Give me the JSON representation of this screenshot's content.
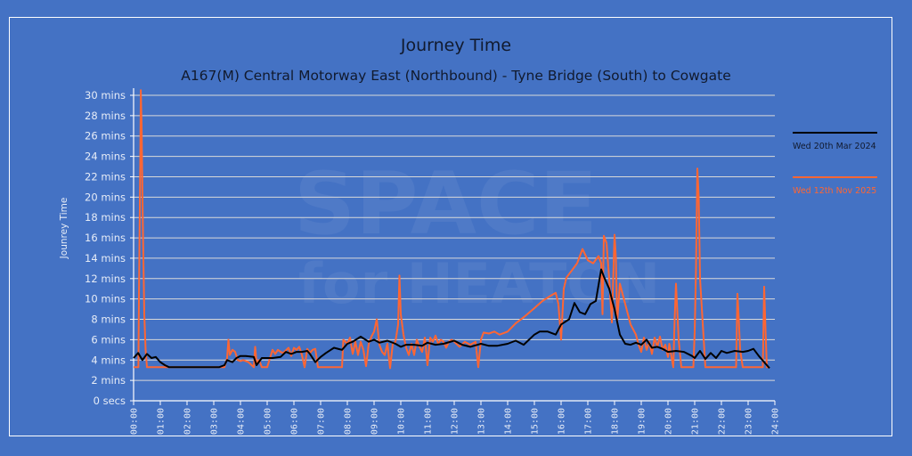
{
  "title": "Journey Time",
  "subtitle": "A167(M) Central Motorway East (Northbound) - Tyne Bridge (South) to Cowgate",
  "watermark": [
    "SPACE",
    "for HEATON"
  ],
  "colors": {
    "background": "#4472c4",
    "grid": "#d9d9d9",
    "series1": "#000000",
    "series2": "#ff6633",
    "title": "#111a2e",
    "axis_text": "#e6ecf7"
  },
  "chart_data": {
    "type": "line",
    "title": "Journey Time",
    "subtitle": "A167(M) Central Motorway East (Northbound) - Tyne Bridge (South) to Cowgate",
    "xlabel": "",
    "ylabel": "Jounrey Time",
    "xlim": [
      0,
      24
    ],
    "ylim": [
      0,
      30
    ],
    "grid": true,
    "legend_position": "right",
    "x_ticks": [
      "00:00",
      "01:00",
      "02:00",
      "03:00",
      "04:00",
      "05:00",
      "06:00",
      "07:00",
      "08:00",
      "09:00",
      "10:00",
      "11:00",
      "12:00",
      "13:00",
      "14:00",
      "15:00",
      "16:00",
      "17:00",
      "18:00",
      "19:00",
      "20:00",
      "21:00",
      "22:00",
      "23:00",
      "24:00"
    ],
    "y_ticks": [
      "0 secs",
      "2 mins",
      "4 mins",
      "6 mins",
      "8 mins",
      "10 mins",
      "12 mins",
      "14 mins",
      "16 mins",
      "18 mins",
      "20 mins",
      "22 mins",
      "24 mins",
      "26 mins",
      "28 mins",
      "30 mins"
    ],
    "series": [
      {
        "name": "Wed 20th Mar 2024",
        "color": "#000000",
        "x": [
          0.0,
          0.17,
          0.33,
          0.5,
          0.67,
          0.83,
          1.0,
          1.17,
          1.33,
          1.5,
          2.0,
          2.5,
          3.0,
          3.2,
          3.4,
          3.5,
          3.7,
          3.85,
          4.0,
          4.2,
          4.5,
          4.6,
          4.8,
          5.0,
          5.2,
          5.5,
          5.7,
          5.9,
          6.1,
          6.3,
          6.5,
          6.6,
          6.8,
          7.0,
          7.2,
          7.5,
          7.8,
          8.0,
          8.2,
          8.5,
          8.8,
          9.0,
          9.2,
          9.5,
          9.8,
          10.0,
          10.2,
          10.5,
          10.8,
          11.0,
          11.3,
          11.6,
          12.0,
          12.3,
          12.6,
          13.0,
          13.3,
          13.6,
          14.0,
          14.3,
          14.6,
          15.0,
          15.2,
          15.5,
          15.8,
          16.0,
          16.3,
          16.5,
          16.7,
          16.9,
          17.1,
          17.3,
          17.5,
          17.6,
          17.8,
          18.0,
          18.2,
          18.4,
          18.6,
          18.8,
          19.0,
          19.2,
          19.4,
          19.6,
          19.8,
          20.0,
          20.3,
          20.6,
          20.9,
          21.0,
          21.2,
          21.4,
          21.6,
          21.8,
          22.0,
          22.2,
          22.5,
          22.8,
          23.0,
          23.2,
          23.4,
          23.6,
          23.8
        ],
        "y": [
          4.2,
          4.7,
          4.0,
          4.6,
          4.2,
          4.3,
          3.8,
          3.5,
          3.3,
          3.3,
          3.3,
          3.3,
          3.3,
          3.3,
          3.5,
          4.0,
          3.8,
          4.2,
          4.4,
          4.4,
          4.3,
          3.5,
          4.2,
          4.2,
          4.2,
          4.3,
          4.8,
          4.6,
          4.8,
          4.8,
          4.9,
          4.6,
          3.8,
          4.3,
          4.7,
          5.2,
          5.0,
          5.6,
          5.8,
          6.3,
          5.8,
          6.0,
          5.7,
          5.9,
          5.6,
          5.3,
          5.5,
          5.5,
          5.4,
          5.7,
          5.5,
          5.6,
          5.9,
          5.5,
          5.3,
          5.6,
          5.4,
          5.4,
          5.6,
          5.9,
          5.5,
          6.5,
          6.8,
          6.8,
          6.5,
          7.5,
          8.0,
          9.6,
          8.7,
          8.5,
          9.5,
          9.8,
          12.9,
          12.2,
          11.0,
          9.0,
          6.5,
          5.6,
          5.5,
          5.7,
          5.5,
          6.0,
          5.2,
          5.3,
          5.1,
          4.8,
          4.9,
          4.8,
          4.4,
          4.2,
          4.9,
          4.1,
          4.7,
          4.2,
          4.9,
          4.7,
          4.9,
          4.8,
          4.9,
          5.1,
          4.4,
          3.8,
          3.2
        ]
      },
      {
        "name": "Wed 12th Nov 2025",
        "color": "#ff6633",
        "x": [
          0.0,
          0.18,
          0.2,
          0.25,
          0.27,
          0.3,
          0.33,
          0.36,
          0.4,
          0.45,
          0.5,
          0.55,
          0.6,
          1.0,
          1.5,
          2.0,
          2.5,
          3.0,
          3.2,
          3.4,
          3.5,
          3.55,
          3.6,
          3.7,
          3.8,
          3.9,
          4.0,
          4.1,
          4.3,
          4.5,
          4.55,
          4.6,
          4.7,
          4.8,
          4.9,
          5.0,
          5.2,
          5.3,
          5.4,
          5.5,
          5.6,
          5.8,
          5.9,
          6.0,
          6.1,
          6.2,
          6.3,
          6.4,
          6.5,
          6.6,
          6.7,
          6.8,
          6.9,
          7.0,
          7.5,
          7.8,
          7.85,
          8.0,
          8.1,
          8.2,
          8.3,
          8.4,
          8.5,
          8.6,
          8.7,
          8.8,
          8.9,
          9.0,
          9.1,
          9.2,
          9.3,
          9.4,
          9.5,
          9.6,
          9.7,
          9.8,
          9.9,
          9.95,
          10.0,
          10.1,
          10.2,
          10.3,
          10.4,
          10.5,
          10.6,
          10.7,
          10.8,
          10.9,
          11.0,
          11.1,
          11.2,
          11.3,
          11.4,
          11.5,
          11.6,
          11.7,
          11.8,
          11.9,
          12.0,
          12.2,
          12.4,
          12.6,
          12.8,
          12.9,
          13.0,
          13.1,
          13.3,
          13.5,
          13.7,
          14.0,
          14.3,
          14.6,
          15.0,
          15.3,
          15.6,
          15.8,
          15.9,
          16.0,
          16.1,
          16.2,
          16.4,
          16.6,
          16.8,
          17.0,
          17.2,
          17.4,
          17.5,
          17.55,
          17.6,
          17.7,
          17.8,
          17.9,
          18.0,
          18.05,
          18.1,
          18.2,
          18.4,
          18.6,
          18.8,
          18.9,
          19.0,
          19.1,
          19.2,
          19.3,
          19.4,
          19.5,
          19.6,
          19.7,
          19.8,
          19.9,
          20.0,
          20.05,
          20.1,
          20.2,
          20.25,
          20.3,
          20.4,
          20.5,
          20.8,
          20.9,
          20.95,
          21.0,
          21.05,
          21.1,
          21.15,
          21.2,
          21.4,
          22.0,
          22.4,
          22.5,
          22.55,
          22.6,
          22.65,
          22.7,
          22.8,
          23.0,
          23.5,
          23.55,
          23.6,
          23.65,
          23.7,
          23.8
        ],
        "y": [
          3.3,
          3.3,
          10.0,
          23.5,
          30.5,
          27.0,
          20.3,
          15.0,
          8.5,
          5.0,
          3.3,
          3.3,
          3.3,
          3.3,
          3.3,
          3.3,
          3.3,
          3.3,
          3.3,
          3.3,
          4.2,
          6.0,
          4.5,
          5.0,
          4.8,
          4.0,
          3.9,
          4.0,
          3.8,
          3.3,
          5.3,
          3.8,
          4.0,
          3.3,
          3.3,
          3.3,
          5.0,
          4.6,
          5.0,
          4.8,
          4.7,
          5.2,
          4.4,
          5.2,
          5.0,
          5.3,
          4.5,
          3.3,
          5.1,
          4.7,
          5.0,
          5.1,
          3.3,
          3.3,
          3.3,
          3.3,
          6.0,
          5.6,
          6.2,
          4.6,
          5.8,
          4.5,
          5.8,
          5.0,
          3.4,
          5.6,
          6.3,
          6.8,
          8.0,
          5.5,
          4.8,
          4.5,
          5.6,
          3.2,
          5.6,
          5.8,
          7.5,
          12.3,
          8.5,
          6.5,
          5.2,
          4.5,
          5.6,
          4.5,
          6.0,
          5.3,
          4.8,
          6.2,
          3.5,
          6.2,
          5.8,
          6.4,
          5.6,
          6.0,
          5.8,
          5.2,
          5.8,
          6.0,
          5.8,
          5.3,
          5.8,
          5.5,
          5.8,
          3.3,
          6.0,
          6.7,
          6.6,
          6.8,
          6.5,
          6.8,
          7.6,
          8.2,
          9.1,
          9.8,
          10.3,
          10.6,
          9.5,
          6.0,
          11.0,
          12.1,
          12.8,
          13.5,
          14.9,
          13.8,
          13.5,
          14.2,
          13.5,
          8.5,
          16.2,
          15.5,
          12.0,
          7.7,
          16.3,
          14.0,
          7.8,
          11.5,
          9.5,
          7.5,
          6.5,
          5.5,
          4.8,
          6.2,
          5.0,
          5.8,
          4.6,
          6.2,
          5.3,
          6.3,
          5.0,
          5.5,
          4.3,
          5.6,
          4.8,
          3.3,
          8.0,
          11.5,
          6.0,
          3.3,
          3.3,
          3.3,
          3.3,
          6.8,
          13.0,
          22.8,
          20.0,
          12.0,
          3.3,
          3.3,
          3.3,
          3.3,
          3.3,
          10.5,
          8.0,
          5.0,
          3.3,
          3.3,
          3.3,
          3.3,
          11.2,
          7.0,
          3.3,
          3.3
        ]
      }
    ]
  }
}
